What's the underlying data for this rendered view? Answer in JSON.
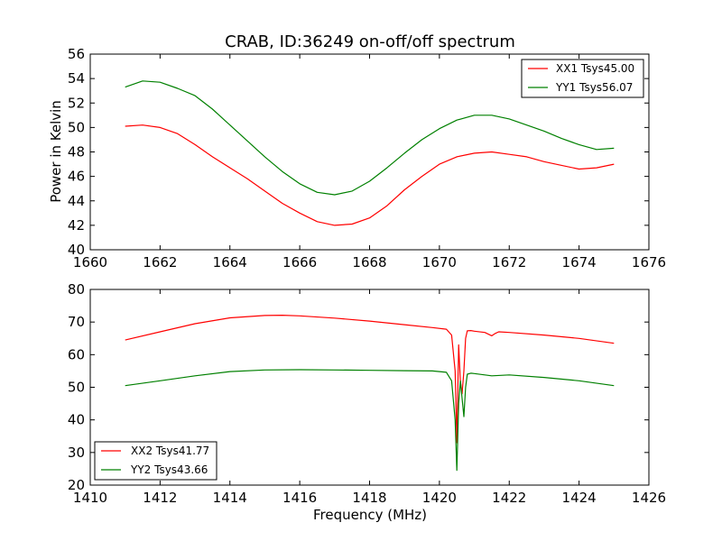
{
  "chart_data": [
    {
      "type": "line",
      "title": "CRAB, ID:36249 on-off/off spectrum",
      "xlabel": "",
      "ylabel": "Power in Kelvin",
      "xlim": [
        1660,
        1676
      ],
      "ylim": [
        40,
        56
      ],
      "xticks": [
        "1660",
        "1662",
        "1664",
        "1666",
        "1668",
        "1670",
        "1672",
        "1674",
        "1676"
      ],
      "yticks": [
        "40",
        "42",
        "44",
        "46",
        "48",
        "50",
        "52",
        "54",
        "56"
      ],
      "legend_position": "top-right",
      "series": [
        {
          "name": "XX1 Tsys45.00",
          "color": "#ff0000",
          "x": [
            1661.0,
            1661.5,
            1662.0,
            1662.5,
            1663.0,
            1663.5,
            1664.0,
            1664.5,
            1665.0,
            1665.5,
            1666.0,
            1666.5,
            1667.0,
            1667.5,
            1668.0,
            1668.5,
            1669.0,
            1669.5,
            1670.0,
            1670.5,
            1671.0,
            1671.5,
            1672.0,
            1672.5,
            1673.0,
            1673.5,
            1674.0,
            1674.5,
            1675.0
          ],
          "y": [
            50.1,
            50.2,
            50.0,
            49.5,
            48.6,
            47.6,
            46.7,
            45.8,
            44.8,
            43.8,
            43.0,
            42.3,
            42.0,
            42.1,
            42.6,
            43.6,
            44.9,
            46.0,
            47.0,
            47.6,
            47.9,
            48.0,
            47.8,
            47.6,
            47.2,
            46.9,
            46.6,
            46.7,
            47.0
          ]
        },
        {
          "name": "YY1 Tsys56.07",
          "color": "#008000",
          "x": [
            1661.0,
            1661.5,
            1662.0,
            1662.5,
            1663.0,
            1663.5,
            1664.0,
            1664.5,
            1665.0,
            1665.5,
            1666.0,
            1666.5,
            1667.0,
            1667.5,
            1668.0,
            1668.5,
            1669.0,
            1669.5,
            1670.0,
            1670.5,
            1671.0,
            1671.5,
            1672.0,
            1672.5,
            1673.0,
            1673.5,
            1674.0,
            1674.5,
            1675.0
          ],
          "y": [
            53.3,
            53.8,
            53.7,
            53.2,
            52.6,
            51.5,
            50.2,
            48.9,
            47.6,
            46.4,
            45.4,
            44.7,
            44.5,
            44.8,
            45.6,
            46.7,
            47.9,
            49.0,
            49.9,
            50.6,
            51.0,
            51.0,
            50.7,
            50.2,
            49.7,
            49.1,
            48.6,
            48.2,
            48.3
          ]
        }
      ]
    },
    {
      "type": "line",
      "title": "",
      "xlabel": "Frequency (MHz)",
      "ylabel": "",
      "xlim": [
        1410,
        1426
      ],
      "ylim": [
        20,
        80
      ],
      "xticks": [
        "1410",
        "1412",
        "1414",
        "1416",
        "1418",
        "1420",
        "1422",
        "1424",
        "1426"
      ],
      "yticks": [
        "20",
        "30",
        "40",
        "50",
        "60",
        "70",
        "80"
      ],
      "legend_position": "lower-left",
      "series": [
        {
          "name": "XX2 Tsys41.77",
          "color": "#ff0000",
          "x": [
            1411.0,
            1412.0,
            1413.0,
            1414.0,
            1415.0,
            1415.5,
            1416.0,
            1417.0,
            1418.0,
            1419.0,
            1419.8,
            1420.2,
            1420.35,
            1420.45,
            1420.5,
            1420.55,
            1420.6,
            1420.65,
            1420.7,
            1420.75,
            1420.8,
            1420.9,
            1421.0,
            1421.3,
            1421.5,
            1421.6,
            1421.7,
            1422.0,
            1423.0,
            1424.0,
            1425.0
          ],
          "y": [
            64.5,
            67.0,
            69.5,
            71.3,
            72.0,
            72.1,
            71.9,
            71.2,
            70.3,
            69.2,
            68.3,
            67.8,
            66.0,
            55.0,
            33.0,
            63.0,
            52.0,
            48.0,
            55.0,
            65.0,
            67.3,
            67.4,
            67.2,
            66.8,
            65.8,
            66.5,
            67.0,
            66.8,
            66.0,
            65.0,
            63.5
          ]
        },
        {
          "name": "YY2 Tsys43.66",
          "color": "#008000",
          "x": [
            1411.0,
            1412.0,
            1413.0,
            1414.0,
            1415.0,
            1416.0,
            1417.0,
            1418.0,
            1419.0,
            1419.8,
            1420.2,
            1420.35,
            1420.45,
            1420.5,
            1420.55,
            1420.6,
            1420.7,
            1420.75,
            1420.8,
            1420.9,
            1421.0,
            1421.5,
            1422.0,
            1423.0,
            1424.0,
            1425.0
          ],
          "y": [
            50.5,
            52.0,
            53.5,
            54.8,
            55.3,
            55.4,
            55.3,
            55.2,
            55.1,
            55.0,
            54.6,
            52.0,
            40.0,
            24.5,
            45.0,
            52.0,
            41.0,
            50.0,
            54.0,
            54.3,
            54.2,
            53.5,
            53.8,
            53.0,
            52.0,
            50.5
          ]
        }
      ]
    }
  ]
}
